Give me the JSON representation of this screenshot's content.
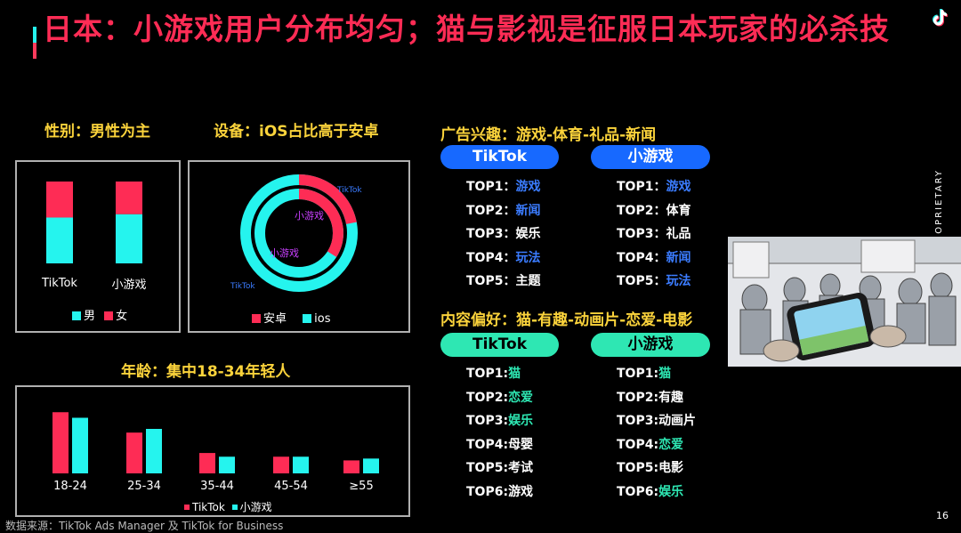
{
  "title": "日本：小游戏用户分布均匀；猫与影视是征服日本玩家的必杀技",
  "gender": {
    "label": "性别：男性为主",
    "categories": [
      "TikTok",
      "小游戏"
    ],
    "legend": [
      "男",
      "女"
    ],
    "colors": {
      "male": "#25f4ee",
      "female": "#fe2c55"
    },
    "male_share": [
      0.56,
      0.6
    ],
    "female_share": [
      0.44,
      0.4
    ]
  },
  "device": {
    "label": "设备：iOS占比高于安卓",
    "legend": [
      "安卓",
      "ios"
    ],
    "ring_labels": {
      "outer": "TikTok",
      "inner": "小游戏"
    },
    "outer_android_share": 0.22,
    "inner_android_share": 0.34,
    "colors": {
      "android": "#fe2c55",
      "ios": "#25f4ee"
    }
  },
  "age": {
    "label": "年龄：集中18-34年轻人",
    "legend": [
      "TikTok",
      "小游戏"
    ]
  },
  "chart_data": {
    "type": "bar",
    "categories": [
      "18-24",
      "25-34",
      "35-44",
      "45-54",
      "≥55"
    ],
    "series": [
      {
        "name": "TikTok",
        "values": [
          33,
          22,
          11,
          9,
          7
        ],
        "color": "#fe2c55"
      },
      {
        "name": "小游戏",
        "values": [
          30,
          24,
          9,
          9,
          8
        ],
        "color": "#25f4ee"
      }
    ],
    "ylim": [
      0,
      36
    ]
  },
  "ad_interest": {
    "label": "广告兴趣：游戏-体育-礼品-新闻",
    "tiktok": {
      "header": "TikTok",
      "items": [
        {
          "rank": "TOP1：",
          "value": "游戏",
          "color": "blue"
        },
        {
          "rank": "TOP2：",
          "value": "新闻",
          "color": "blue"
        },
        {
          "rank": "TOP3：",
          "value": "娱乐",
          "color": "white"
        },
        {
          "rank": "TOP4：",
          "value": "玩法",
          "color": "blue"
        },
        {
          "rank": "TOP5：",
          "value": "主题",
          "color": "white"
        }
      ]
    },
    "minigame": {
      "header": "小游戏",
      "items": [
        {
          "rank": "TOP1：",
          "value": "游戏",
          "color": "blue"
        },
        {
          "rank": "TOP2：",
          "value": "体育",
          "color": "white"
        },
        {
          "rank": "TOP3：",
          "value": "礼品",
          "color": "white"
        },
        {
          "rank": "TOP4：",
          "value": "新闻",
          "color": "blue"
        },
        {
          "rank": "TOP5：",
          "value": "玩法",
          "color": "blue"
        }
      ]
    }
  },
  "content_pref": {
    "label": "内容偏好：猫-有趣-动画片-恋爱-电影",
    "tiktok": {
      "header": "TikTok",
      "items": [
        {
          "rank": "TOP1:",
          "value": "猫",
          "color": "green"
        },
        {
          "rank": "TOP2:",
          "value": "恋爱",
          "color": "green"
        },
        {
          "rank": "TOP3:",
          "value": "娱乐",
          "color": "green"
        },
        {
          "rank": "TOP4:",
          "value": "母婴",
          "color": "white"
        },
        {
          "rank": "TOP5:",
          "value": "考试",
          "color": "white"
        },
        {
          "rank": "TOP6:",
          "value": "游戏",
          "color": "white"
        }
      ]
    },
    "minigame": {
      "header": "小游戏",
      "items": [
        {
          "rank": "TOP1:",
          "value": "猫",
          "color": "green"
        },
        {
          "rank": "TOP2:",
          "value": "有趣",
          "color": "white"
        },
        {
          "rank": "TOP3:",
          "value": "动画片",
          "color": "white"
        },
        {
          "rank": "TOP4:",
          "value": "恋爱",
          "color": "green"
        },
        {
          "rank": "TOP5:",
          "value": "电影",
          "color": "white"
        },
        {
          "rank": "TOP6:",
          "value": "娱乐",
          "color": "green"
        }
      ]
    }
  },
  "vertical_text": "OPRIETARY",
  "source": "数据来源：TikTok Ads Manager 及 TikTok for Business",
  "page_number": "16"
}
